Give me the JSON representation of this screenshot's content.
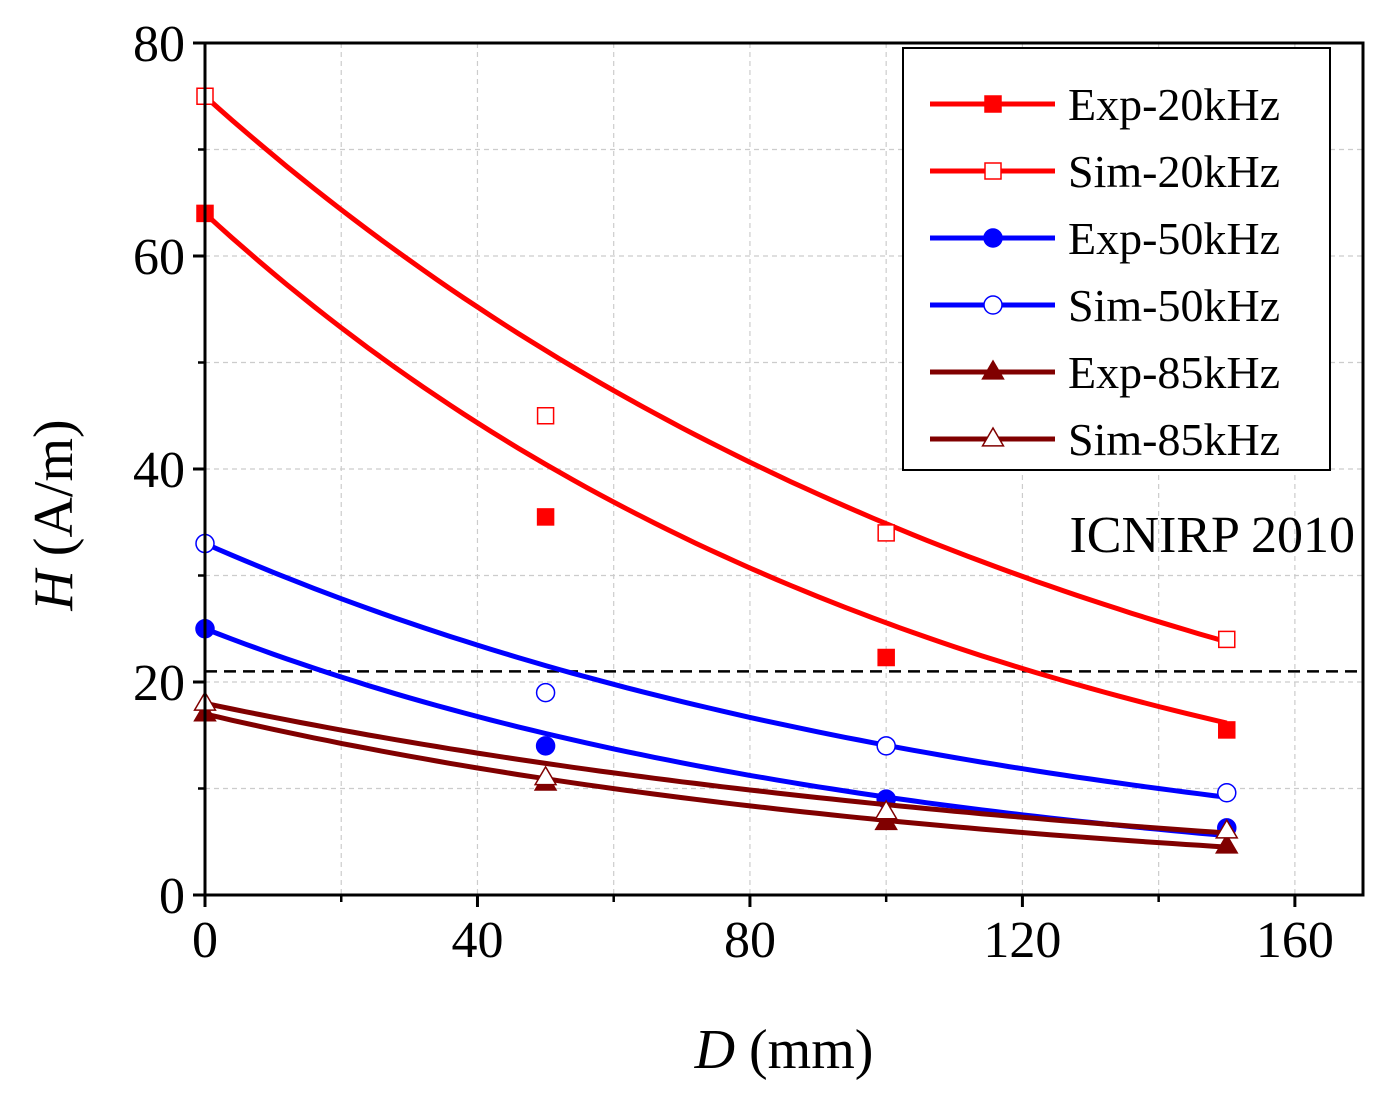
{
  "chart_data": {
    "type": "line",
    "title": "",
    "xlabel_var": "D",
    "xlabel_unit": " (mm)",
    "ylabel_var": "H",
    "ylabel_unit": " (A/m)",
    "xlim": [
      0,
      170
    ],
    "ylim": [
      0,
      80
    ],
    "xticks": [
      0,
      40,
      80,
      120,
      160
    ],
    "xtick_labels": [
      "0",
      "40",
      "80",
      "120",
      "160"
    ],
    "yticks": [
      0,
      20,
      40,
      60,
      80
    ],
    "ytick_labels": [
      "0",
      "20",
      "40",
      "60",
      "80"
    ],
    "grid": true,
    "legend_position": "top-right",
    "threshold": {
      "value": 21,
      "label": "ICNIRP 2010",
      "style": "dashed"
    },
    "series": [
      {
        "name": "Exp-20kHz",
        "color": "#ff0000",
        "marker": "square",
        "filled": true,
        "x": [
          0,
          50,
          100,
          150
        ],
        "y": [
          64,
          35.5,
          22.3,
          15.5
        ],
        "fit": {
          "a": 64,
          "b": 0.00918
        }
      },
      {
        "name": "Sim-20kHz",
        "color": "#ff0000",
        "marker": "square",
        "filled": false,
        "x": [
          0,
          50,
          100,
          150
        ],
        "y": [
          75,
          45,
          34,
          24
        ],
        "fit": {
          "a": 75,
          "b": 0.00766
        }
      },
      {
        "name": "Exp-50kHz",
        "color": "#0000ff",
        "marker": "circle",
        "filled": true,
        "x": [
          0,
          50,
          100,
          150
        ],
        "y": [
          25,
          14,
          9,
          6.3
        ],
        "fit": {
          "a": 25,
          "b": 0.01
        }
      },
      {
        "name": "Sim-50kHz",
        "color": "#0000ff",
        "marker": "circle",
        "filled": false,
        "x": [
          0,
          50,
          100,
          150
        ],
        "y": [
          33,
          19,
          14,
          9.6
        ],
        "fit": {
          "a": 33,
          "b": 0.00853
        }
      },
      {
        "name": "Exp-85kHz",
        "color": "#800000",
        "marker": "triangle",
        "filled": true,
        "x": [
          0,
          50,
          100,
          150
        ],
        "y": [
          17,
          10.5,
          6.8,
          4.6
        ],
        "fit": {
          "a": 17,
          "b": 0.00886
        }
      },
      {
        "name": "Sim-85kHz",
        "color": "#800000",
        "marker": "triangle",
        "filled": false,
        "x": [
          0,
          50,
          100,
          150
        ],
        "y": [
          18,
          11,
          7.8,
          6
        ],
        "fit": {
          "a": 18,
          "b": 0.00752
        }
      }
    ]
  }
}
